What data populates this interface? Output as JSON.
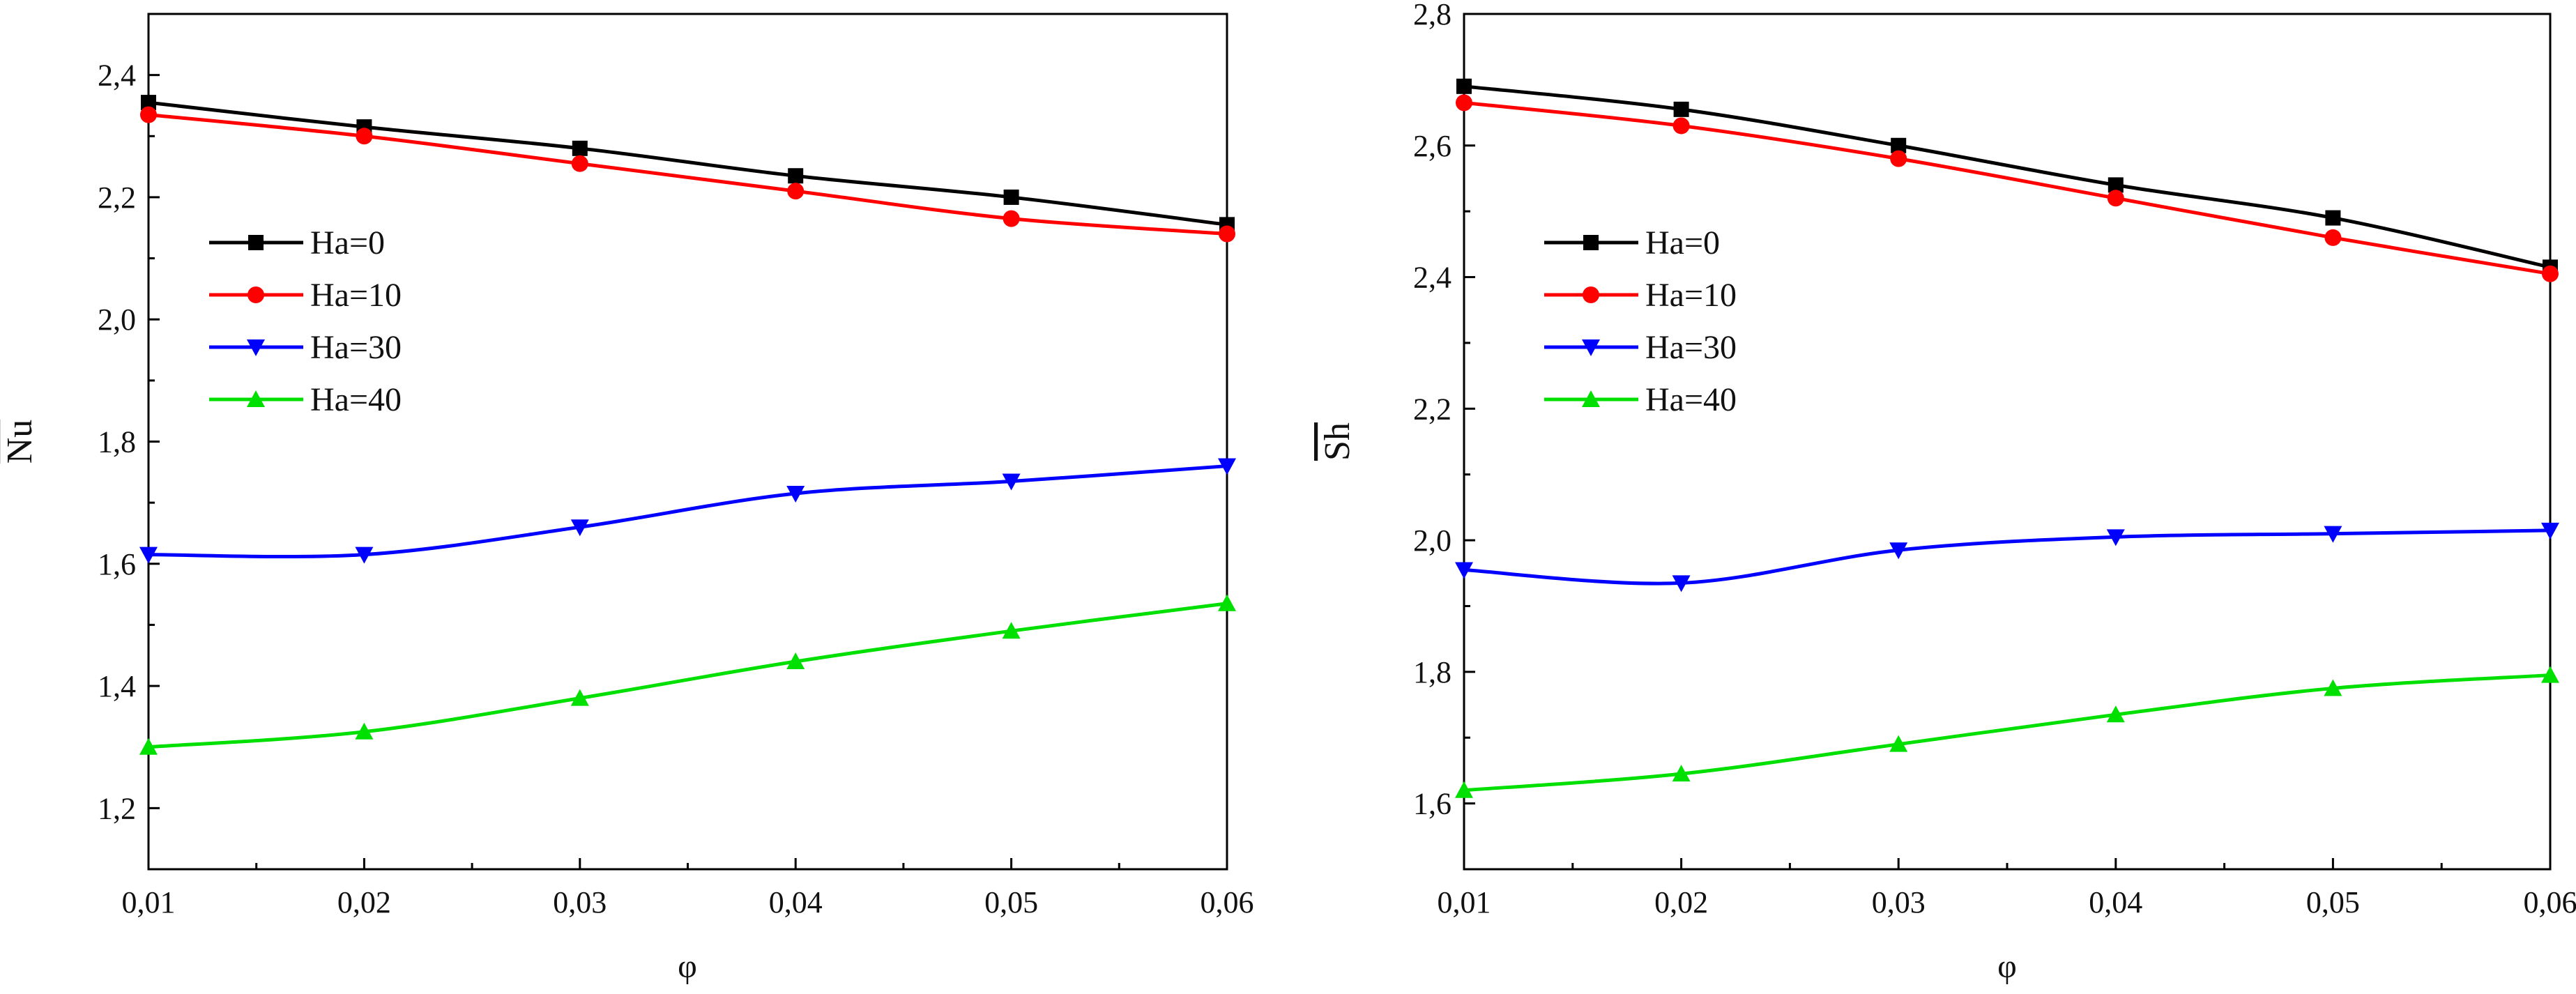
{
  "chart_data": [
    {
      "type": "line",
      "title": "",
      "xlabel": "φ",
      "ylabel": "Nu",
      "ylabel_overline": true,
      "xlim": [
        0.01,
        0.06
      ],
      "ylim": [
        1.1,
        2.5
      ],
      "x_ticks": [
        "0,01",
        "0,02",
        "0,03",
        "0,04",
        "0,05",
        "0,06"
      ],
      "y_ticks": [
        "1,2",
        "1,4",
        "1,6",
        "1,8",
        "2,0",
        "2,2",
        "2,4"
      ],
      "x": [
        0.01,
        0.02,
        0.03,
        0.04,
        0.05,
        0.06
      ],
      "grid": false,
      "legend_position": "upper-left",
      "series": [
        {
          "name": "Ha=0",
          "color": "#000000",
          "marker": "square",
          "values": [
            2.355,
            2.315,
            2.28,
            2.235,
            2.2,
            2.155
          ]
        },
        {
          "name": "Ha=10",
          "color": "#ff0000",
          "marker": "circle",
          "values": [
            2.335,
            2.3,
            2.255,
            2.21,
            2.165,
            2.14
          ]
        },
        {
          "name": "Ha=30",
          "color": "#0000ff",
          "marker": "triangle-down",
          "values": [
            1.615,
            1.615,
            1.66,
            1.715,
            1.735,
            1.76
          ]
        },
        {
          "name": "Ha=40",
          "color": "#00e000",
          "marker": "triangle-up",
          "values": [
            1.3,
            1.325,
            1.38,
            1.44,
            1.49,
            1.535
          ]
        }
      ]
    },
    {
      "type": "line",
      "title": "",
      "xlabel": "φ",
      "ylabel": "Sh",
      "ylabel_overline": true,
      "xlim": [
        0.01,
        0.06
      ],
      "ylim": [
        1.5,
        2.8
      ],
      "x_ticks": [
        "0,01",
        "0,02",
        "0,03",
        "0,04",
        "0,05",
        "0,06"
      ],
      "y_ticks": [
        "1,6",
        "1,8",
        "2,0",
        "2,2",
        "2,4",
        "2,6",
        "2,8"
      ],
      "x": [
        0.01,
        0.02,
        0.03,
        0.04,
        0.05,
        0.06
      ],
      "grid": false,
      "legend_position": "upper-left",
      "series": [
        {
          "name": "Ha=0",
          "color": "#000000",
          "marker": "square",
          "values": [
            2.69,
            2.655,
            2.6,
            2.54,
            2.49,
            2.415
          ]
        },
        {
          "name": "Ha=10",
          "color": "#ff0000",
          "marker": "circle",
          "values": [
            2.665,
            2.63,
            2.58,
            2.52,
            2.46,
            2.405
          ]
        },
        {
          "name": "Ha=30",
          "color": "#0000ff",
          "marker": "triangle-down",
          "values": [
            1.955,
            1.935,
            1.985,
            2.005,
            2.01,
            2.015
          ]
        },
        {
          "name": "Ha=40",
          "color": "#00e000",
          "marker": "triangle-up",
          "values": [
            1.62,
            1.645,
            1.69,
            1.735,
            1.775,
            1.795
          ]
        }
      ]
    }
  ]
}
